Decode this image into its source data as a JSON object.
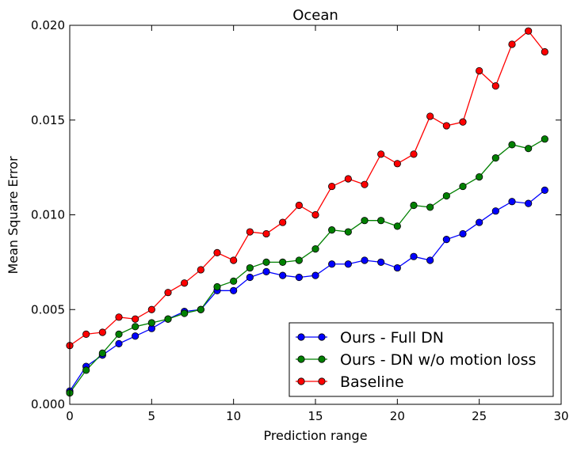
{
  "chart_data": {
    "type": "line",
    "title": "Ocean",
    "xlabel": "Prediction range",
    "ylabel": "Mean Square Error",
    "xlim": [
      0,
      30
    ],
    "ylim": [
      0,
      0.02
    ],
    "xticks": [
      "0",
      "5",
      "10",
      "15",
      "20",
      "25",
      "30"
    ],
    "xtick_values": [
      0,
      5,
      10,
      15,
      20,
      25,
      30
    ],
    "yticks": [
      "0.000",
      "0.005",
      "0.010",
      "0.015",
      "0.020"
    ],
    "ytick_values": [
      0,
      0.005,
      0.01,
      0.015,
      0.02
    ],
    "grid": false,
    "legend_position": "lower-right",
    "x": [
      0,
      1,
      2,
      3,
      4,
      5,
      6,
      7,
      8,
      9,
      10,
      11,
      12,
      13,
      14,
      15,
      16,
      17,
      18,
      19,
      20,
      21,
      22,
      23,
      24,
      25,
      26,
      27,
      28,
      29
    ],
    "series": [
      {
        "name": "Ours - Full DN",
        "color": "#0000ff",
        "values": [
          0.0007,
          0.002,
          0.0026,
          0.0032,
          0.0036,
          0.004,
          0.0045,
          0.0049,
          0.005,
          0.006,
          0.006,
          0.0067,
          0.007,
          0.0068,
          0.0067,
          0.0068,
          0.0074,
          0.0074,
          0.0076,
          0.0075,
          0.0072,
          0.0078,
          0.0076,
          0.0087,
          0.009,
          0.0096,
          0.0102,
          0.0107,
          0.0106,
          0.0113
        ]
      },
      {
        "name": "Ours - DN w/o motion loss",
        "color": "#008000",
        "values": [
          0.0006,
          0.0018,
          0.0027,
          0.0037,
          0.0041,
          0.0043,
          0.0045,
          0.0048,
          0.005,
          0.0062,
          0.0065,
          0.0072,
          0.0075,
          0.0075,
          0.0076,
          0.0082,
          0.0092,
          0.0091,
          0.0097,
          0.0097,
          0.0094,
          0.0105,
          0.0104,
          0.011,
          0.0115,
          0.012,
          0.013,
          0.0137,
          0.0135,
          0.014
        ]
      },
      {
        "name": "Baseline",
        "color": "#ff0000",
        "values": [
          0.0031,
          0.0037,
          0.0038,
          0.0046,
          0.0045,
          0.005,
          0.0059,
          0.0064,
          0.0071,
          0.008,
          0.0076,
          0.0091,
          0.009,
          0.0096,
          0.0105,
          0.01,
          0.0115,
          0.0119,
          0.0116,
          0.0132,
          0.0127,
          0.0132,
          0.0152,
          0.0147,
          0.0149,
          0.0176,
          0.0168,
          0.019,
          0.0197,
          0.0186
        ]
      }
    ]
  }
}
